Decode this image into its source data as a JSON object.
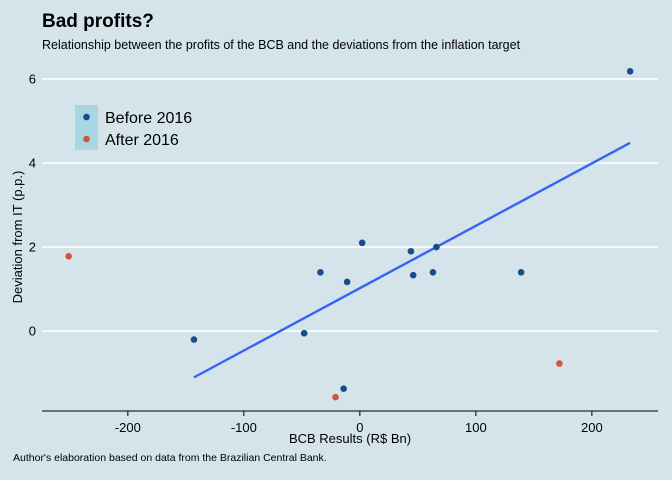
{
  "header": {
    "title": "Bad profits?",
    "subtitle": "Relationship between the profits of the BCB and the deviations from the inflation target"
  },
  "caption": "Author's elaboration based on data from the Brazilian Central Bank.",
  "colors": {
    "background": "#d5e4eb",
    "grid": "#ffffff",
    "before": "#154f8a",
    "after": "#d2553c",
    "trend": "#3564f4",
    "legend_bg": "#a9d6e3"
  },
  "chart_data": {
    "type": "scatter",
    "xlabel": "BCB Results (R$ Bn)",
    "ylabel": "Deviation from IT (p.p.)",
    "xlim": [
      -274,
      257
    ],
    "ylim": [
      -1.9,
      6.45
    ],
    "xticks": [
      -200,
      -100,
      0,
      100,
      200
    ],
    "xtick_labels": [
      "-200",
      "-100",
      "0",
      "100",
      "200"
    ],
    "yticks": [
      0,
      2,
      4,
      6
    ],
    "ytick_labels": [
      "0",
      "2",
      "4",
      "6"
    ],
    "grid": "horizontal",
    "legend_position": "top-left",
    "series": [
      {
        "name": "Before 2016",
        "color": "#154f8a",
        "points": [
          {
            "x": 233,
            "y": 6.18
          },
          {
            "x": 2,
            "y": 2.1
          },
          {
            "x": 44,
            "y": 1.9
          },
          {
            "x": 66,
            "y": 2.0
          },
          {
            "x": -34,
            "y": 1.4
          },
          {
            "x": 46,
            "y": 1.33
          },
          {
            "x": 63,
            "y": 1.4
          },
          {
            "x": 139,
            "y": 1.4
          },
          {
            "x": -11,
            "y": 1.17
          },
          {
            "x": -48,
            "y": -0.05
          },
          {
            "x": -143,
            "y": -0.2
          },
          {
            "x": -14,
            "y": -1.37
          }
        ]
      },
      {
        "name": "After 2016",
        "color": "#d2553c",
        "points": [
          {
            "x": -251,
            "y": 1.78
          },
          {
            "x": 172,
            "y": -0.77
          },
          {
            "x": -21,
            "y": -1.57
          }
        ]
      }
    ],
    "trendline": {
      "x": [
        -143,
        233
      ],
      "y": [
        -1.1,
        4.48
      ]
    }
  }
}
